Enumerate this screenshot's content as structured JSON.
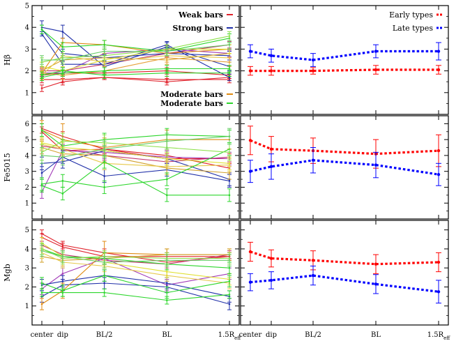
{
  "figure": {
    "x_categories": [
      "center",
      "dip",
      "BL/2",
      "BL",
      "1.5R"
    ],
    "x_last_suffix": "eff",
    "x_positions": [
      0,
      1,
      3,
      6,
      9
    ]
  },
  "legends": {
    "weak": {
      "label": "Weak bars",
      "color": "#e0202a"
    },
    "strong": {
      "label": "Strong bars",
      "color": "#1f2fa8"
    },
    "moderate_orange": {
      "label": "Moderate bars",
      "color": "#e08a10"
    },
    "moderate_green": {
      "label": "Moderate bars",
      "color": "#2bd62b"
    },
    "early": {
      "label": "Early types",
      "color": "#ff0000"
    },
    "late": {
      "label": "Late types",
      "color": "#0000ff"
    }
  },
  "chart_data": [
    {
      "id": "hb-individual",
      "type": "line",
      "ylabel": "Hβ",
      "ylim": [
        0,
        5
      ],
      "yticks": [
        1,
        2,
        3,
        4,
        5
      ],
      "series": [
        {
          "group": "weak",
          "color": "#e0202a",
          "values": [
            1.2,
            1.5,
            1.7,
            1.5,
            1.7
          ],
          "err": [
            0.15,
            0.15,
            0.1,
            0.15,
            0.15
          ]
        },
        {
          "group": "weak",
          "color": "#e0202a",
          "values": [
            1.6,
            1.6,
            1.7,
            1.6,
            1.6
          ],
          "err": [
            0.15,
            0.15,
            0.1,
            0.15,
            0.15
          ]
        },
        {
          "group": "weak",
          "color": "#e0202a",
          "values": [
            1.8,
            1.9,
            1.9,
            2.0,
            1.8
          ],
          "err": [
            0.15,
            0.15,
            0.1,
            0.15,
            0.15
          ]
        },
        {
          "group": "weak",
          "color": "#c0306a",
          "values": [
            2.0,
            2.0,
            2.3,
            2.8,
            3.2
          ],
          "err": [
            0.15,
            0.15,
            0.1,
            0.15,
            0.15
          ]
        },
        {
          "group": "weak",
          "color": "#a23ab8",
          "values": [
            1.9,
            1.9,
            2.8,
            3.0,
            2.8
          ],
          "err": [
            0.15,
            0.15,
            0.1,
            0.15,
            0.15
          ]
        },
        {
          "group": "strong",
          "color": "#1f2fa8",
          "values": [
            3.7,
            2.3,
            2.3,
            3.2,
            1.7
          ],
          "err": [
            0.1,
            0.15,
            0.1,
            0.15,
            0.15
          ]
        },
        {
          "group": "strong",
          "color": "#1f2fa8",
          "values": [
            4.0,
            3.8,
            2.2,
            3.1,
            2.2
          ],
          "err": [
            0.3,
            0.3,
            0.2,
            0.2,
            0.2
          ]
        },
        {
          "group": "strong",
          "color": "#1f2fa8",
          "values": [
            3.9,
            2.8,
            2.6,
            2.8,
            2.7
          ],
          "err": [
            0.2,
            0.2,
            0.15,
            0.2,
            0.2
          ]
        },
        {
          "group": "moderate_orange",
          "color": "#e08a10",
          "values": [
            1.9,
            3.3,
            3.2,
            2.8,
            3.0
          ],
          "err": [
            0.2,
            0.2,
            0.2,
            0.2,
            0.2
          ]
        },
        {
          "group": "moderate_orange",
          "color": "#d2a02a",
          "values": [
            2.0,
            2.5,
            2.6,
            2.5,
            2.8
          ],
          "err": [
            0.2,
            0.2,
            0.2,
            0.2,
            0.2
          ]
        },
        {
          "group": "moderate_orange",
          "color": "#e6c94a",
          "values": [
            1.8,
            2.7,
            2.4,
            2.7,
            2.6
          ],
          "err": [
            0.2,
            0.2,
            0.2,
            0.2,
            0.2
          ]
        },
        {
          "group": "moderate_orange",
          "color": "#e0e030",
          "values": [
            2.2,
            2.0,
            2.5,
            3.0,
            3.0
          ],
          "err": [
            0.2,
            0.2,
            0.2,
            0.2,
            0.2
          ]
        },
        {
          "group": "moderate_orange",
          "color": "#e6a03a",
          "values": [
            1.9,
            1.8,
            2.0,
            2.6,
            2.4
          ],
          "err": [
            0.2,
            0.2,
            0.2,
            0.2,
            0.2
          ]
        },
        {
          "group": "moderate_green",
          "color": "#2bd62b",
          "values": [
            3.9,
            3.1,
            3.2,
            2.9,
            3.5
          ],
          "err": [
            0.2,
            0.2,
            0.2,
            0.2,
            0.2
          ]
        },
        {
          "group": "moderate_green",
          "color": "#2bd62b",
          "values": [
            1.7,
            1.9,
            2.0,
            2.1,
            2.1
          ],
          "err": [
            0.15,
            0.15,
            0.15,
            0.15,
            0.15
          ]
        },
        {
          "group": "moderate_green",
          "color": "#2bd62b",
          "values": [
            1.8,
            2.0,
            1.8,
            1.9,
            1.9
          ],
          "err": [
            0.15,
            0.15,
            0.15,
            0.15,
            0.15
          ]
        },
        {
          "group": "moderate_green",
          "color": "#8ce04a",
          "values": [
            2.4,
            2.6,
            2.7,
            3.0,
            3.6
          ],
          "err": [
            0.2,
            0.2,
            0.2,
            0.2,
            0.2
          ]
        },
        {
          "group": "moderate_green",
          "color": "#66cc66",
          "values": [
            2.5,
            2.5,
            2.9,
            2.9,
            3.2
          ],
          "err": [
            0.2,
            0.2,
            0.2,
            0.2,
            0.2
          ]
        }
      ]
    },
    {
      "id": "hb-mean",
      "type": "line",
      "ylim": [
        0,
        5
      ],
      "yticks": [
        1,
        2,
        3,
        4,
        5
      ],
      "series": [
        {
          "group": "early",
          "color": "#ff0000",
          "values": [
            2.0,
            2.0,
            2.0,
            2.05,
            2.05
          ],
          "err": [
            0.2,
            0.2,
            0.15,
            0.2,
            0.2
          ]
        },
        {
          "group": "late",
          "color": "#0000ff",
          "values": [
            2.9,
            2.7,
            2.5,
            2.9,
            2.9
          ],
          "err": [
            0.3,
            0.3,
            0.3,
            0.3,
            0.4
          ]
        }
      ]
    },
    {
      "id": "fe5015-individual",
      "type": "line",
      "ylabel": "Fe5015",
      "ylim": [
        0,
        6.5
      ],
      "yticks": [
        1,
        2,
        3,
        4,
        5,
        6
      ],
      "series": [
        {
          "group": "weak",
          "color": "#e0202a",
          "values": [
            5.7,
            5.2,
            4.4,
            4.0,
            3.2
          ],
          "err": [
            0.3,
            0.3,
            0.3,
            0.3,
            0.3
          ]
        },
        {
          "group": "weak",
          "color": "#e0202a",
          "values": [
            5.5,
            4.3,
            4.4,
            3.8,
            3.8
          ],
          "err": [
            0.3,
            0.3,
            0.3,
            0.3,
            0.3
          ]
        },
        {
          "group": "weak",
          "color": "#c0306a",
          "values": [
            4.6,
            4.4,
            4.0,
            3.6,
            3.9
          ],
          "err": [
            0.3,
            0.3,
            0.3,
            0.3,
            0.3
          ]
        },
        {
          "group": "weak",
          "color": "#a23ab8",
          "values": [
            1.7,
            4.3,
            4.2,
            3.9,
            3.8
          ],
          "err": [
            0.4,
            0.4,
            0.4,
            0.4,
            0.4
          ]
        },
        {
          "group": "strong",
          "color": "#1f2fa8",
          "values": [
            3.5,
            3.6,
            4.3,
            3.8,
            2.5
          ],
          "err": [
            0.4,
            0.4,
            0.4,
            0.4,
            0.4
          ]
        },
        {
          "group": "strong",
          "color": "#1f2fa8",
          "values": [
            2.9,
            3.9,
            2.7,
            3.1,
            2.4
          ],
          "err": [
            0.4,
            0.4,
            0.4,
            0.4,
            0.4
          ]
        },
        {
          "group": "moderate_orange",
          "color": "#e08a10",
          "values": [
            5.6,
            5.0,
            4.5,
            5.0,
            5.0
          ],
          "err": [
            0.6,
            1.0,
            0.6,
            0.6,
            0.6
          ]
        },
        {
          "group": "moderate_orange",
          "color": "#d2a02a",
          "values": [
            4.5,
            4.1,
            4.0,
            3.2,
            2.9
          ],
          "err": [
            0.4,
            0.4,
            0.4,
            0.4,
            0.4
          ]
        },
        {
          "group": "moderate_orange",
          "color": "#e6c94a",
          "values": [
            4.7,
            4.4,
            3.5,
            3.3,
            3.4
          ],
          "err": [
            0.4,
            0.4,
            0.4,
            0.4,
            0.4
          ]
        },
        {
          "group": "moderate_orange",
          "color": "#e0e030",
          "values": [
            4.8,
            4.5,
            4.3,
            3.8,
            3.5
          ],
          "err": [
            0.4,
            0.4,
            0.4,
            0.4,
            0.4
          ]
        },
        {
          "group": "moderate_green",
          "color": "#2bd62b",
          "values": [
            5.6,
            4.6,
            5.0,
            5.3,
            5.2
          ],
          "err": [
            0.4,
            0.4,
            0.4,
            0.4,
            0.4
          ]
        },
        {
          "group": "moderate_green",
          "color": "#2bd62b",
          "values": [
            2.1,
            1.6,
            3.6,
            1.5,
            1.5
          ],
          "err": [
            0.4,
            0.4,
            0.4,
            0.4,
            0.4
          ]
        },
        {
          "group": "moderate_green",
          "color": "#2bd62b",
          "values": [
            2.2,
            2.4,
            2.0,
            2.5,
            4.4
          ],
          "err": [
            0.4,
            0.4,
            0.4,
            0.4,
            0.4
          ]
        },
        {
          "group": "moderate_green",
          "color": "#8ce04a",
          "values": [
            4.2,
            4.9,
            4.8,
            4.5,
            4.2
          ],
          "err": [
            0.5,
            0.5,
            0.5,
            0.5,
            0.5
          ]
        },
        {
          "group": "moderate_green",
          "color": "#66cc66",
          "values": [
            4.0,
            3.9,
            4.4,
            4.9,
            5.2
          ],
          "err": [
            0.5,
            0.5,
            0.5,
            0.5,
            0.5
          ]
        }
      ]
    },
    {
      "id": "fe5015-mean",
      "type": "line",
      "ylim": [
        0,
        6.5
      ],
      "yticks": [
        1,
        2,
        3,
        4,
        5,
        6
      ],
      "series": [
        {
          "group": "early",
          "color": "#ff0000",
          "values": [
            4.95,
            4.4,
            4.3,
            4.1,
            4.3
          ],
          "err": [
            0.9,
            0.8,
            0.8,
            0.9,
            1.0
          ]
        },
        {
          "group": "late",
          "color": "#0000ff",
          "values": [
            3.0,
            3.3,
            3.7,
            3.4,
            2.8
          ],
          "err": [
            0.7,
            0.8,
            0.8,
            0.8,
            0.7
          ]
        }
      ]
    },
    {
      "id": "mgb-individual",
      "type": "line",
      "ylabel": "Mgb",
      "ylim": [
        0,
        5.5
      ],
      "yticks": [
        1,
        2,
        3,
        4,
        5
      ],
      "series": [
        {
          "group": "weak",
          "color": "#e0202a",
          "values": [
            4.8,
            4.2,
            3.8,
            3.3,
            3.6
          ],
          "err": [
            0.2,
            0.2,
            0.2,
            0.2,
            0.2
          ]
        },
        {
          "group": "weak",
          "color": "#e0202a",
          "values": [
            4.6,
            4.1,
            3.6,
            3.6,
            3.6
          ],
          "err": [
            0.2,
            0.2,
            0.2,
            0.2,
            0.2
          ]
        },
        {
          "group": "weak",
          "color": "#c0306a",
          "values": [
            4.2,
            3.7,
            3.4,
            3.2,
            3.7
          ],
          "err": [
            0.2,
            0.2,
            0.2,
            0.2,
            0.2
          ]
        },
        {
          "group": "weak",
          "color": "#a23ab8",
          "values": [
            1.9,
            2.7,
            3.5,
            2.1,
            2.7
          ],
          "err": [
            0.3,
            0.3,
            0.3,
            0.3,
            0.3
          ]
        },
        {
          "group": "strong",
          "color": "#1f2fa8",
          "values": [
            1.5,
            2.1,
            2.2,
            2.0,
            1.1
          ],
          "err": [
            0.3,
            0.3,
            0.3,
            0.3,
            0.3
          ]
        },
        {
          "group": "strong",
          "color": "#1f2fa8",
          "values": [
            2.1,
            2.3,
            2.6,
            2.2,
            1.5
          ],
          "err": [
            0.3,
            0.3,
            0.3,
            0.3,
            0.3
          ]
        },
        {
          "group": "moderate_orange",
          "color": "#e08a10",
          "values": [
            1.1,
            1.8,
            3.8,
            3.7,
            3.7
          ],
          "err": [
            0.3,
            0.4,
            0.6,
            0.3,
            0.3
          ]
        },
        {
          "group": "moderate_orange",
          "color": "#d2a02a",
          "values": [
            3.6,
            3.4,
            3.5,
            3.7,
            3.7
          ],
          "err": [
            0.3,
            0.3,
            0.3,
            0.3,
            0.3
          ]
        },
        {
          "group": "moderate_orange",
          "color": "#e6c94a",
          "values": [
            3.8,
            3.3,
            3.1,
            2.6,
            2.2
          ],
          "err": [
            0.3,
            0.3,
            0.3,
            0.3,
            0.3
          ]
        },
        {
          "group": "moderate_orange",
          "color": "#e0e030",
          "values": [
            4.3,
            3.6,
            3.3,
            2.8,
            2.4
          ],
          "err": [
            0.3,
            0.3,
            0.3,
            0.3,
            0.3
          ]
        },
        {
          "group": "moderate_green",
          "color": "#2bd62b",
          "values": [
            4.0,
            3.6,
            3.5,
            3.2,
            3.0
          ],
          "err": [
            0.3,
            0.3,
            0.3,
            0.3,
            0.3
          ]
        },
        {
          "group": "moderate_green",
          "color": "#2bd62b",
          "values": [
            1.7,
            1.7,
            1.7,
            1.3,
            1.6
          ],
          "err": [
            0.2,
            0.2,
            0.2,
            0.2,
            0.2
          ]
        },
        {
          "group": "moderate_green",
          "color": "#2bd62b",
          "values": [
            2.2,
            1.8,
            2.6,
            1.7,
            2.3
          ],
          "err": [
            0.3,
            0.3,
            0.3,
            0.3,
            0.3
          ]
        },
        {
          "group": "moderate_green",
          "color": "#8ce04a",
          "values": [
            4.0,
            3.5,
            3.6,
            3.5,
            3.5
          ],
          "err": [
            0.3,
            0.3,
            0.3,
            0.3,
            0.3
          ]
        },
        {
          "group": "moderate_green",
          "color": "#66cc66",
          "values": [
            3.9,
            3.6,
            3.3,
            3.4,
            3.4
          ],
          "err": [
            0.3,
            0.3,
            0.3,
            0.3,
            0.3
          ]
        }
      ]
    },
    {
      "id": "mgb-mean",
      "type": "line",
      "ylim": [
        0,
        5.5
      ],
      "yticks": [
        1,
        2,
        3,
        4,
        5
      ],
      "series": [
        {
          "group": "early",
          "color": "#ff0000",
          "values": [
            3.85,
            3.5,
            3.4,
            3.2,
            3.3
          ],
          "err": [
            0.5,
            0.45,
            0.5,
            0.5,
            0.5
          ]
        },
        {
          "group": "late",
          "color": "#0000ff",
          "values": [
            2.25,
            2.35,
            2.6,
            2.15,
            1.75
          ],
          "err": [
            0.45,
            0.45,
            0.5,
            0.5,
            0.6
          ]
        }
      ]
    }
  ]
}
